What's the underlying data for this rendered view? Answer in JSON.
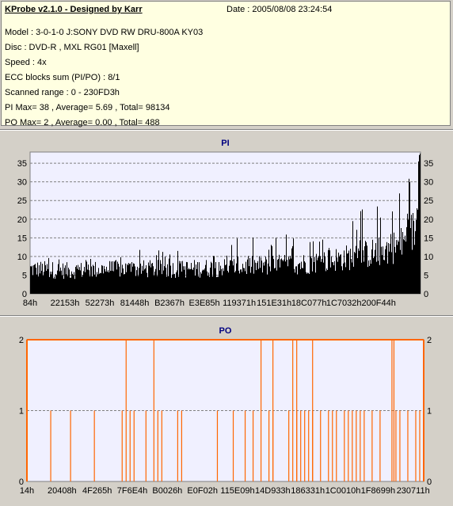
{
  "info": {
    "title": "KProbe v2.1.0 - Designed by Karr",
    "date": "Date : 2005/08/08 23:24:54",
    "lines": [
      "Model : 3-0-1-0 J:SONY    DVD RW DRU-800A  KY03",
      "Disc : DVD-R , MXL RG01 [Maxell]",
      "Speed : 4x",
      "ECC blocks sum (PI/PO) : 8/1",
      "Scanned range : 0 - 230FD3h",
      "PI Max= 38 , Average= 5.69 , Total= 98134",
      "PO Max= 2 , Average= 0.00 , Total= 488"
    ]
  },
  "colors": {
    "pi_bar": "#000000",
    "po_bar": "#ff6600",
    "plot_bg": "#f0f0ff",
    "title": "#000080",
    "axis_po": "#ff6600"
  },
  "chart_data": [
    {
      "type": "bar",
      "title": "PI",
      "ylim": [
        0,
        38
      ],
      "yticks": [
        0,
        5,
        10,
        15,
        20,
        25,
        30,
        35
      ],
      "xtick_labels": [
        "84h",
        "22153h",
        "52273h",
        "81448h",
        "B2367h",
        "E3E85h",
        "119371h",
        "151E31h",
        "18C077h",
        "1C7032h",
        "200F44h"
      ],
      "grid": true,
      "profile": {
        "description_points_x_fraction": [
          0,
          0.1,
          0.2,
          0.3,
          0.4,
          0.5,
          0.6,
          0.7,
          0.8,
          0.9,
          0.95,
          1.0
        ],
        "typical": [
          7,
          6.5,
          7,
          7,
          7,
          7.5,
          8,
          8.5,
          10,
          12,
          14,
          20
        ],
        "peak": [
          12,
          11,
          11,
          12,
          12,
          16,
          15,
          17,
          20,
          28,
          28,
          38
        ]
      }
    },
    {
      "type": "bar",
      "title": "PO",
      "ylim": [
        0,
        2
      ],
      "yticks": [
        0,
        1,
        2
      ],
      "xtick_labels": [
        "14h",
        "20408h",
        "4F265h",
        "7F6E4h",
        "B0026h",
        "E0F02h",
        "115E09h",
        "14D933h",
        "186331h",
        "1C0010h",
        "1F8699h",
        "230711h"
      ],
      "grid": true,
      "ones_fraction": [
        0.06,
        0.11,
        0.17,
        0.24,
        0.26,
        0.27,
        0.3,
        0.33,
        0.34,
        0.38,
        0.39,
        0.48,
        0.52,
        0.55,
        0.57,
        0.61,
        0.62,
        0.66,
        0.68,
        0.69,
        0.7,
        0.71,
        0.72,
        0.74,
        0.76,
        0.77,
        0.78,
        0.8,
        0.81,
        0.82,
        0.83,
        0.84,
        0.85,
        0.87,
        0.89,
        0.93,
        0.94,
        0.96,
        0.98,
        0.99
      ],
      "twos_fraction": [
        0.25,
        0.32,
        0.59,
        0.62,
        0.67,
        0.68,
        0.72,
        0.92,
        0.925
      ]
    }
  ]
}
